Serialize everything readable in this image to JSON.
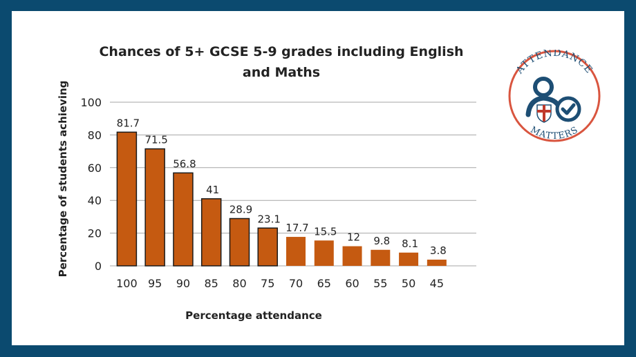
{
  "colors": {
    "border": "#0b4a6f",
    "bar_fill": "#c55a11",
    "bar_outline": "#1a1a1a",
    "badge_ring": "#d9553f",
    "badge_blue": "#1d4e74"
  },
  "badge": {
    "top_text": "ATTENDANCE",
    "bottom_text": "MATTERS",
    "icons": [
      "person-icon",
      "check-circle-icon",
      "shield-cross-icon"
    ]
  },
  "chart_data": {
    "type": "bar",
    "title": "Chances of 5+ GCSE 5-9 grades including English and Maths",
    "title_lines": [
      "Chances of 5+ GCSE 5-9 grades including English",
      "and Maths"
    ],
    "xlabel": "Percentage attendance",
    "ylabel": "Percentage of students achieving",
    "categories": [
      "100",
      "95",
      "90",
      "85",
      "80",
      "75",
      "70",
      "65",
      "60",
      "55",
      "50",
      "45"
    ],
    "values": [
      81.7,
      71.5,
      56.8,
      41,
      28.9,
      23.1,
      17.7,
      15.5,
      12,
      9.8,
      8.1,
      3.8
    ],
    "data_labels": [
      "81.7",
      "71.5",
      "56.8",
      "41",
      "28.9",
      "23.1",
      "17.7",
      "15.5",
      "12",
      "9.8",
      "8.1",
      "3.8"
    ],
    "outlined_bars": 6,
    "ylim": [
      0,
      100
    ],
    "yticks": [
      0,
      20,
      40,
      60,
      80,
      100
    ],
    "grid": true,
    "legend": "none"
  }
}
